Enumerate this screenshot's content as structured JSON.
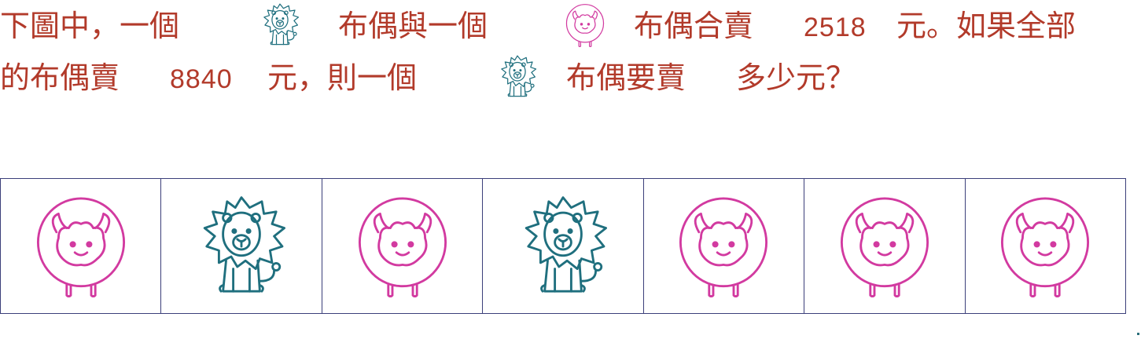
{
  "question": {
    "line1": {
      "t1": "下圖中，一個",
      "t2": "布偶與一個",
      "t3": "布偶合賣",
      "n1": "2518",
      "t4": "元。如果全部"
    },
    "line2": {
      "t1": "的布偶賣",
      "n1": "8840",
      "t2": "元，則一個",
      "t3": "布偶要賣",
      "t4": "多少元？"
    }
  },
  "icons": {
    "lion": "lion-doll-icon",
    "sheep": "sheep-doll-icon"
  },
  "colors": {
    "text": "#b23a2a",
    "lion": "#1f6f7e",
    "sheep": "#d23aa0",
    "border": "#3b3f7a"
  },
  "strip": {
    "items": [
      "sheep",
      "lion",
      "sheep",
      "lion",
      "sheep",
      "sheep",
      "sheep"
    ]
  }
}
